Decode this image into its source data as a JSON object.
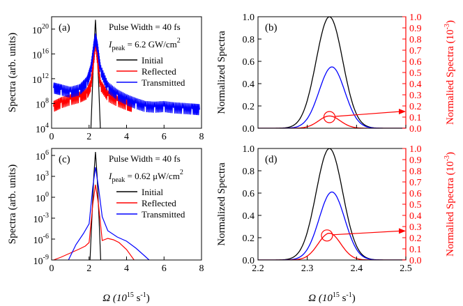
{
  "figure": {
    "x_axis_label_main": "Ω (10",
    "x_axis_label_exp": "15",
    "x_axis_label_unit": " s",
    "x_axis_label_unit_exp": "-1",
    "x_axis_label_close": ")",
    "colors": {
      "initial": "#000000",
      "reflected": "#ff0000",
      "transmitted": "#0000ff",
      "right_axis": "#ff0000"
    }
  },
  "chart_data": [
    {
      "id": "a",
      "panel_label": "(a)",
      "type": "line",
      "yscale": "log",
      "xlim": [
        0,
        8
      ],
      "ylim_log10": [
        4,
        22
      ],
      "xticks": [
        0,
        2,
        4,
        6,
        8
      ],
      "xtick_labels": [
        "0",
        "2",
        "4",
        "6",
        "8"
      ],
      "yticks_log10": [
        4,
        8,
        12,
        16,
        20
      ],
      "ytick_base": "10",
      "ytick_exponents": [
        "4",
        "8",
        "12",
        "16",
        "20"
      ],
      "ylabel": "Spectra (arb. units)",
      "annotations": {
        "pulse": "Pulse Width = 40 fs",
        "ipeak_label": "I",
        "ipeak_sub": "peak",
        "ipeak_value": " = 6.2 GW/cm",
        "ipeak_sup": "2"
      },
      "legend": [
        "Initial",
        "Reflected",
        "Transmitted"
      ],
      "series": [
        {
          "name": "Initial",
          "x": [
            2.1,
            2.2,
            2.28,
            2.34,
            2.4,
            2.5,
            2.6
          ],
          "y_log10": [
            4,
            12,
            18,
            21.5,
            18,
            12,
            4
          ]
        },
        {
          "name": "Reflected",
          "x": [
            0.1,
            0.5,
            1.0,
            1.5,
            1.9,
            2.1,
            2.25,
            2.34,
            2.45,
            2.6,
            3.0,
            3.5,
            4.0,
            4.3
          ],
          "y_log10": [
            7.5,
            8.1,
            8.6,
            9.0,
            9.6,
            11.0,
            15.0,
            18.2,
            15.0,
            11.0,
            9.2,
            8.4,
            7.8,
            7.5
          ]
        },
        {
          "name": "Transmitted",
          "x": [
            0.1,
            0.5,
            1.0,
            1.5,
            1.9,
            2.1,
            2.25,
            2.34,
            2.45,
            2.6,
            3.0,
            3.5,
            4.0,
            4.5,
            5.0,
            5.5,
            6.0,
            6.5,
            7.0,
            7.5,
            7.9
          ],
          "y_log10": [
            10.5,
            10.2,
            9.8,
            10.2,
            11.5,
            13.5,
            17.0,
            18.5,
            17.0,
            13.5,
            10.6,
            9.4,
            8.6,
            8.0,
            7.5,
            7.4,
            7.5,
            7.3,
            7.2,
            7.1,
            7.0
          ]
        }
      ]
    },
    {
      "id": "b",
      "panel_label": "(b)",
      "type": "line",
      "yscale": "linear",
      "xlim": [
        2.2,
        2.5
      ],
      "ylim": [
        0,
        1
      ],
      "xticks": [
        2.2,
        2.3,
        2.4,
        2.5
      ],
      "yticks": [
        0,
        0.2,
        0.4,
        0.6,
        0.8,
        1.0
      ],
      "ytick_labels": [
        "0.0",
        "0.2",
        "0.4",
        "0.6",
        "0.8",
        "1.0"
      ],
      "ylabel": "Normalized Spectra",
      "ylabel_right": "Normalied Spectra (10",
      "ylabel_right_exp": "-3",
      "ylabel_right_close": ")",
      "ytick_labels_right": [
        "0.0",
        "0.1",
        "0.2",
        "0.3",
        "0.4",
        "0.5",
        "0.6",
        "0.7",
        "0.8",
        "0.9",
        "1.0"
      ],
      "series": [
        {
          "name": "Initial",
          "center": 2.345,
          "sigma": 0.027,
          "peak": 1.0
        },
        {
          "name": "Transmitted",
          "center": 2.35,
          "sigma": 0.026,
          "peak": 0.55
        },
        {
          "name": "Reflected (right axis, 10^-3)",
          "center": 2.345,
          "sigma": 0.022,
          "peak": 0.11
        }
      ],
      "marker_circle": {
        "x": 2.345,
        "y": 0.1
      },
      "arrow_target_right_axis": 0.15
    },
    {
      "id": "c",
      "panel_label": "(c)",
      "type": "line",
      "yscale": "log",
      "xlim": [
        0,
        8
      ],
      "ylim_log10": [
        -9,
        7
      ],
      "xticks": [
        0,
        2,
        4,
        6,
        8
      ],
      "xtick_labels": [
        "0",
        "2",
        "4",
        "6",
        "8"
      ],
      "yticks_log10": [
        -9,
        -6,
        -3,
        0,
        3,
        6
      ],
      "ytick_base": "10",
      "ytick_exponents": [
        "-9",
        "-6",
        "-3",
        "0",
        "3",
        "6"
      ],
      "ylabel": "Spectra (arb. units)",
      "annotations": {
        "pulse": "Pulse Width = 40 fs",
        "ipeak_label": "I",
        "ipeak_sub": "peak",
        "ipeak_value": " = 0.62 μW/cm",
        "ipeak_sup": "2"
      },
      "legend": [
        "Initial",
        "Reflected",
        "Transmitted"
      ],
      "series": [
        {
          "name": "Initial",
          "x": [
            2.05,
            2.15,
            2.25,
            2.34,
            2.43,
            2.53,
            2.62
          ],
          "y_log10": [
            -9,
            -3,
            3,
            6.5,
            3,
            -3,
            -9
          ]
        },
        {
          "name": "Reflected",
          "x": [
            0.1,
            0.5,
            1.0,
            1.5,
            1.8,
            2.0,
            2.2,
            2.34,
            2.5,
            2.7,
            3.0,
            3.3,
            3.6,
            4.0,
            4.4
          ],
          "y_log10": [
            -9,
            -8.6,
            -8.0,
            -7.4,
            -7.0,
            -6.5,
            -1.0,
            1.8,
            -1.0,
            -6.2,
            -5.9,
            -6.1,
            -6.5,
            -7.5,
            -9
          ]
        },
        {
          "name": "Transmitted",
          "x": [
            0.9,
            1.3,
            1.7,
            2.0,
            2.2,
            2.34,
            2.5,
            2.7,
            3.0,
            3.5,
            4.0,
            4.5,
            5.0,
            5.2
          ],
          "y_log10": [
            -9,
            -6.8,
            -5.2,
            -3.8,
            1.5,
            4.3,
            1.5,
            -2.8,
            -4.8,
            -5.7,
            -6.3,
            -7.3,
            -8.5,
            -9
          ]
        }
      ]
    },
    {
      "id": "d",
      "panel_label": "(d)",
      "type": "line",
      "yscale": "linear",
      "xlim": [
        2.2,
        2.5
      ],
      "ylim": [
        0,
        1
      ],
      "xticks": [
        2.2,
        2.3,
        2.4,
        2.5
      ],
      "xtick_labels": [
        "2.2",
        "2.3",
        "2.4",
        "2.5"
      ],
      "yticks": [
        0,
        0.2,
        0.4,
        0.6,
        0.8,
        1.0
      ],
      "ytick_labels": [
        "0.0",
        "0.2",
        "0.4",
        "0.6",
        "0.8",
        "1.0"
      ],
      "ylabel": "Normalized Spectra",
      "ylabel_right": "Normalied Spectra (10",
      "ylabel_right_exp": "-3",
      "ylabel_right_close": ")",
      "ytick_labels_right": [
        "0.0",
        "0.1",
        "0.2",
        "0.3",
        "0.4",
        "0.5",
        "0.6",
        "0.7",
        "0.8",
        "0.9",
        "1.0"
      ],
      "series": [
        {
          "name": "Initial",
          "center": 2.345,
          "sigma": 0.027,
          "peak": 1.0
        },
        {
          "name": "Transmitted",
          "center": 2.35,
          "sigma": 0.026,
          "peak": 0.61
        },
        {
          "name": "Reflected (right axis, 10^-3)",
          "center": 2.345,
          "sigma": 0.023,
          "peak": 0.24
        }
      ],
      "marker_circle": {
        "x": 2.34,
        "y": 0.22
      },
      "arrow_target_right_axis": 0.26
    }
  ]
}
